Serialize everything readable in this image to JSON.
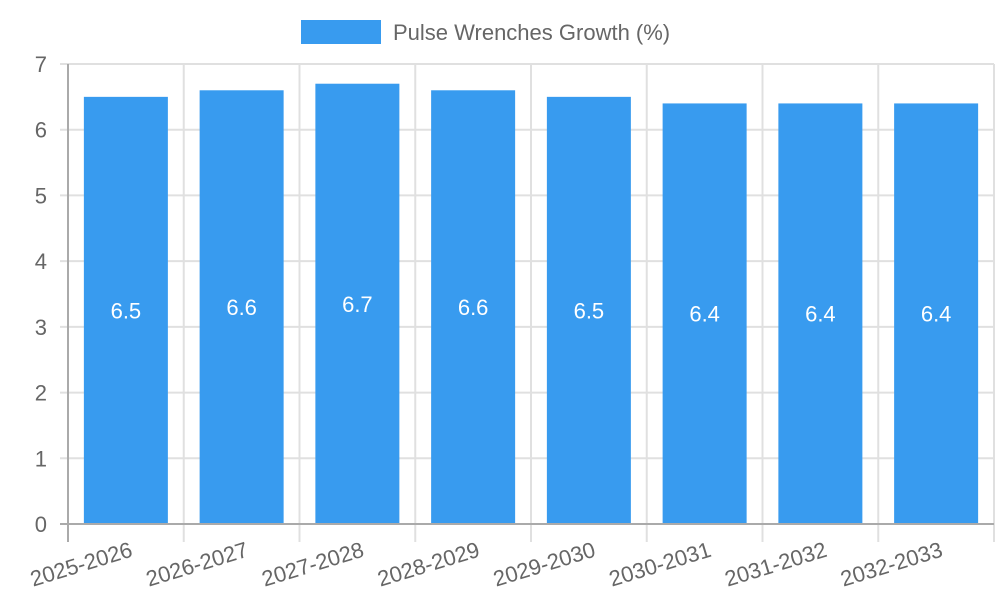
{
  "legend": {
    "label": "Pulse Wrenches Growth (%)",
    "color": "#389BEF"
  },
  "colors": {
    "bar": "#389BEF",
    "grid": "#e0e0e0",
    "axis": "#aaaaaa",
    "text": "#666666"
  },
  "chart_data": {
    "type": "bar",
    "title": "",
    "xlabel": "",
    "ylabel": "",
    "categories": [
      "2025-2026",
      "2026-2027",
      "2027-2028",
      "2028-2029",
      "2029-2030",
      "2030-2031",
      "2031-2032",
      "2032-2033"
    ],
    "series": [
      {
        "name": "Pulse Wrenches Growth (%)",
        "values": [
          6.5,
          6.6,
          6.7,
          6.6,
          6.5,
          6.4,
          6.4,
          6.4
        ]
      }
    ],
    "ylim": [
      0,
      7
    ],
    "yticks": [
      0,
      1,
      2,
      3,
      4,
      5,
      6,
      7
    ],
    "grid": true,
    "legend_position": "top",
    "data_labels": true
  }
}
